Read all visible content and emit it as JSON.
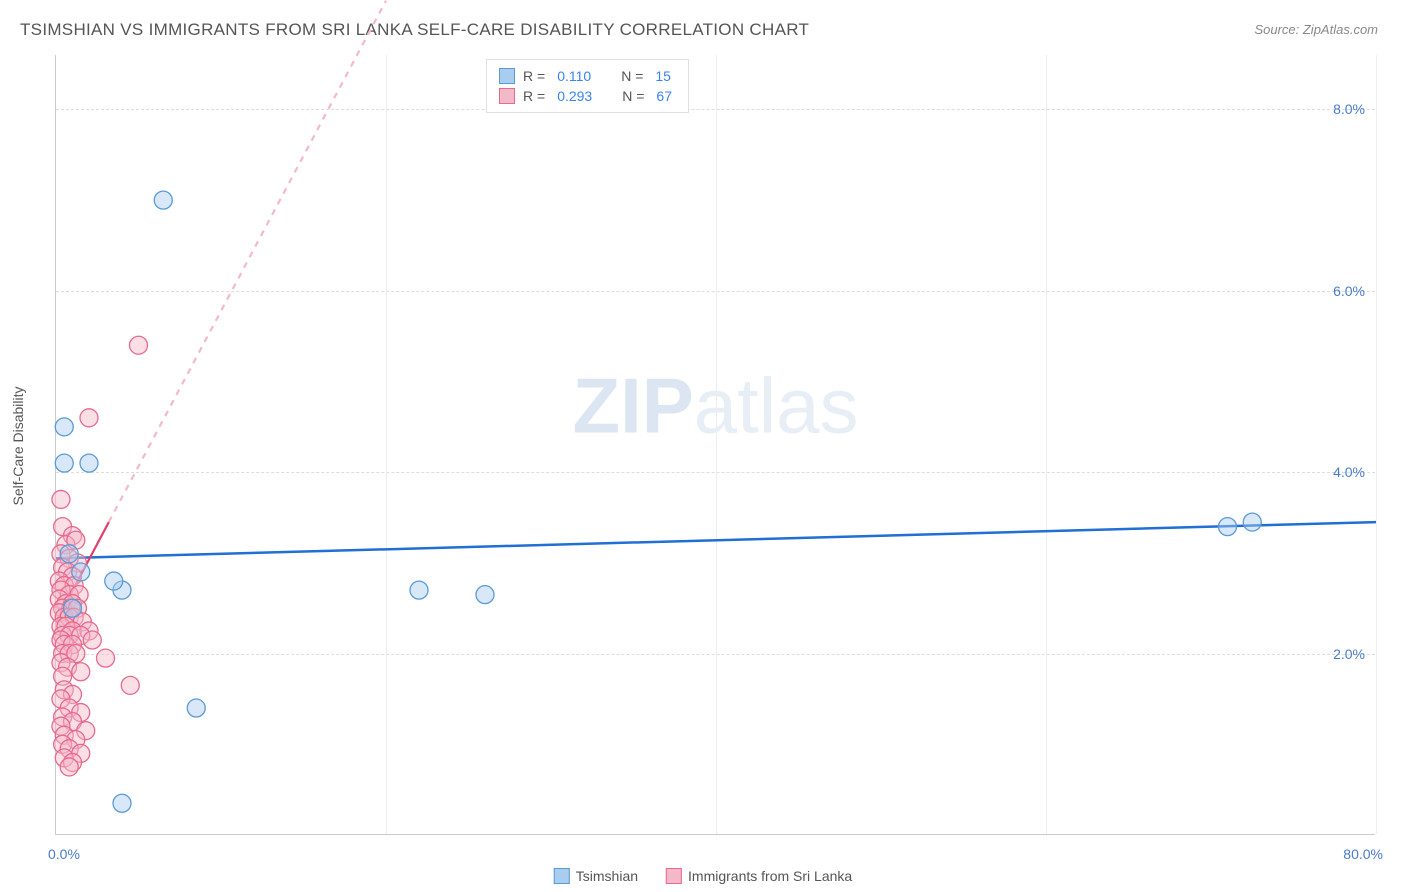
{
  "title": "TSIMSHIAN VS IMMIGRANTS FROM SRI LANKA SELF-CARE DISABILITY CORRELATION CHART",
  "source": "Source: ZipAtlas.com",
  "watermark": {
    "bold": "ZIP",
    "light": "atlas"
  },
  "ylabel": "Self-Care Disability",
  "chart": {
    "type": "scatter",
    "background_color": "#ffffff",
    "grid_color": "#dddddd",
    "axis_color": "#cccccc",
    "tick_color": "#4a7bc8",
    "xlim": [
      0,
      80
    ],
    "ylim": [
      0,
      8.6
    ],
    "yticks": [
      2.0,
      4.0,
      6.0,
      8.0
    ],
    "ytick_labels": [
      "2.0%",
      "4.0%",
      "6.0%",
      "8.0%"
    ],
    "xtick_left": "0.0%",
    "xtick_right": "80.0%",
    "x_grid_positions": [
      20,
      40,
      60,
      80
    ],
    "marker_radius": 9,
    "marker_opacity": 0.45,
    "series": [
      {
        "name": "Tsimshian",
        "stroke": "#5a9bd5",
        "fill": "#a8cdef",
        "line_color": "#1f6fd4",
        "line_width": 2.5,
        "R_label": "R =",
        "R": "0.110",
        "N_label": "N =",
        "N": "15",
        "regression": {
          "x1": 0,
          "y1": 3.05,
          "x2": 80,
          "y2": 3.45
        },
        "points": [
          {
            "x": 6.5,
            "y": 7.0
          },
          {
            "x": 0.5,
            "y": 4.5
          },
          {
            "x": 0.5,
            "y": 4.1
          },
          {
            "x": 2.0,
            "y": 4.1
          },
          {
            "x": 71,
            "y": 3.4
          },
          {
            "x": 72.5,
            "y": 3.45
          },
          {
            "x": 1.5,
            "y": 2.9
          },
          {
            "x": 4.0,
            "y": 2.7
          },
          {
            "x": 3.5,
            "y": 2.8
          },
          {
            "x": 1.0,
            "y": 2.5
          },
          {
            "x": 22,
            "y": 2.7
          },
          {
            "x": 26,
            "y": 2.65
          },
          {
            "x": 8.5,
            "y": 1.4
          },
          {
            "x": 4.0,
            "y": 0.35
          },
          {
            "x": 0.8,
            "y": 3.1
          }
        ]
      },
      {
        "name": "Immigrants from Sri Lanka",
        "stroke": "#e76a8c",
        "fill": "#f4b9c9",
        "line_color": "#e23e6b",
        "line_width": 2.2,
        "dash_ext_color": "#f4b9c9",
        "R_label": "R =",
        "R": "0.293",
        "N_label": "N =",
        "N": "67",
        "regression_solid": {
          "x1": 0,
          "y1": 2.35,
          "x2": 3.2,
          "y2": 3.45
        },
        "regression_dash": {
          "x1": 3.2,
          "y1": 3.45,
          "x2": 20,
          "y2": 9.2
        },
        "points": [
          {
            "x": 5.0,
            "y": 5.4
          },
          {
            "x": 2.0,
            "y": 4.6
          },
          {
            "x": 0.3,
            "y": 3.7
          },
          {
            "x": 0.4,
            "y": 3.4
          },
          {
            "x": 1.0,
            "y": 3.3
          },
          {
            "x": 0.6,
            "y": 3.2
          },
          {
            "x": 1.2,
            "y": 3.25
          },
          {
            "x": 0.3,
            "y": 3.1
          },
          {
            "x": 0.8,
            "y": 3.05
          },
          {
            "x": 1.3,
            "y": 3.0
          },
          {
            "x": 0.4,
            "y": 2.95
          },
          {
            "x": 0.7,
            "y": 2.9
          },
          {
            "x": 1.0,
            "y": 2.85
          },
          {
            "x": 0.2,
            "y": 2.8
          },
          {
            "x": 0.5,
            "y": 2.75
          },
          {
            "x": 1.1,
            "y": 2.75
          },
          {
            "x": 0.3,
            "y": 2.7
          },
          {
            "x": 0.8,
            "y": 2.65
          },
          {
            "x": 1.4,
            "y": 2.65
          },
          {
            "x": 0.2,
            "y": 2.6
          },
          {
            "x": 0.6,
            "y": 2.55
          },
          {
            "x": 1.0,
            "y": 2.55
          },
          {
            "x": 0.4,
            "y": 2.5
          },
          {
            "x": 0.9,
            "y": 2.5
          },
          {
            "x": 1.3,
            "y": 2.5
          },
          {
            "x": 0.2,
            "y": 2.45
          },
          {
            "x": 0.5,
            "y": 2.4
          },
          {
            "x": 0.8,
            "y": 2.4
          },
          {
            "x": 1.1,
            "y": 2.4
          },
          {
            "x": 1.6,
            "y": 2.35
          },
          {
            "x": 0.3,
            "y": 2.3
          },
          {
            "x": 0.6,
            "y": 2.3
          },
          {
            "x": 1.0,
            "y": 2.25
          },
          {
            "x": 2.0,
            "y": 2.25
          },
          {
            "x": 0.4,
            "y": 2.2
          },
          {
            "x": 0.8,
            "y": 2.2
          },
          {
            "x": 1.5,
            "y": 2.2
          },
          {
            "x": 0.3,
            "y": 2.15
          },
          {
            "x": 2.2,
            "y": 2.15
          },
          {
            "x": 0.5,
            "y": 2.1
          },
          {
            "x": 1.0,
            "y": 2.1
          },
          {
            "x": 0.4,
            "y": 2.0
          },
          {
            "x": 0.8,
            "y": 2.0
          },
          {
            "x": 1.2,
            "y": 2.0
          },
          {
            "x": 3.0,
            "y": 1.95
          },
          {
            "x": 0.3,
            "y": 1.9
          },
          {
            "x": 0.7,
            "y": 1.85
          },
          {
            "x": 1.5,
            "y": 1.8
          },
          {
            "x": 0.4,
            "y": 1.75
          },
          {
            "x": 4.5,
            "y": 1.65
          },
          {
            "x": 0.5,
            "y": 1.6
          },
          {
            "x": 1.0,
            "y": 1.55
          },
          {
            "x": 0.3,
            "y": 1.5
          },
          {
            "x": 0.8,
            "y": 1.4
          },
          {
            "x": 1.5,
            "y": 1.35
          },
          {
            "x": 0.4,
            "y": 1.3
          },
          {
            "x": 1.0,
            "y": 1.25
          },
          {
            "x": 0.3,
            "y": 1.2
          },
          {
            "x": 1.8,
            "y": 1.15
          },
          {
            "x": 0.5,
            "y": 1.1
          },
          {
            "x": 1.2,
            "y": 1.05
          },
          {
            "x": 0.4,
            "y": 1.0
          },
          {
            "x": 0.8,
            "y": 0.95
          },
          {
            "x": 1.5,
            "y": 0.9
          },
          {
            "x": 0.5,
            "y": 0.85
          },
          {
            "x": 1.0,
            "y": 0.8
          },
          {
            "x": 0.8,
            "y": 0.75
          }
        ]
      }
    ]
  }
}
